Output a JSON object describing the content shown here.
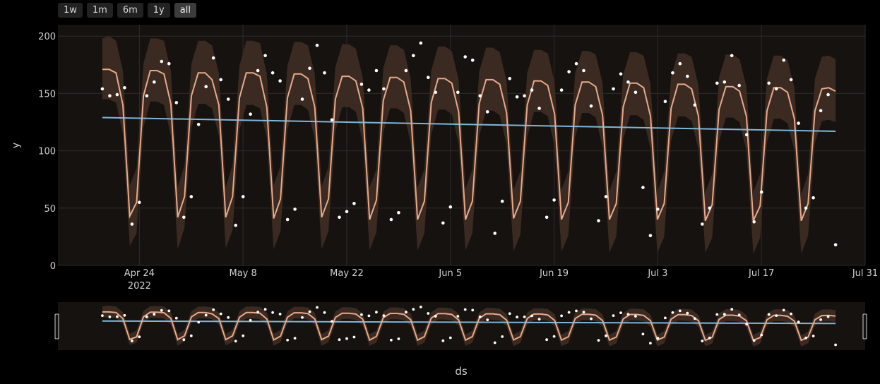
{
  "range_buttons": [
    {
      "label": "1w",
      "active": false
    },
    {
      "label": "1m",
      "active": false
    },
    {
      "label": "6m",
      "active": false
    },
    {
      "label": "1y",
      "active": false
    },
    {
      "label": "all",
      "active": true
    }
  ],
  "colors": {
    "background": "#000000",
    "plot_bg": "#16120f",
    "grid": "#2c2c2c",
    "band": "#3a2a22",
    "forecast": "#e8a98a",
    "trend": "#7eb6d9",
    "points": "#ffffff",
    "text": "#d0d0d0"
  },
  "chart_data": {
    "type": "line",
    "title": "",
    "xlabel": "ds",
    "ylabel": "y",
    "x_start": "2022-04-19",
    "x_end": "2022-07-27",
    "xlim": [
      "2022-04-13",
      "2022-07-31"
    ],
    "ylim": [
      0,
      210
    ],
    "yticks": [
      0,
      50,
      100,
      150,
      200
    ],
    "xticks": [
      {
        "date": "2022-04-24",
        "label": "Apr 24",
        "sublabel": "2022"
      },
      {
        "date": "2022-05-08",
        "label": "May 8"
      },
      {
        "date": "2022-05-22",
        "label": "May 22"
      },
      {
        "date": "2022-06-05",
        "label": "Jun 5"
      },
      {
        "date": "2022-06-19",
        "label": "Jun 19"
      },
      {
        "date": "2022-07-03",
        "label": "Jul 3"
      },
      {
        "date": "2022-07-17",
        "label": "Jul 17"
      },
      {
        "date": "2022-07-31",
        "label": "Jul 31"
      }
    ],
    "grid": true,
    "trend": {
      "start": 129,
      "end": 117
    },
    "series": [
      {
        "role": "yhat",
        "values": [
          171,
          171,
          168,
          140,
          43,
          55,
          148,
          170,
          170,
          167,
          141,
          42,
          60,
          148,
          168,
          168,
          162,
          140,
          42,
          60,
          146,
          168,
          168,
          165,
          138,
          41,
          58,
          146,
          167,
          167,
          163,
          138,
          42,
          58,
          145,
          165,
          165,
          161,
          137,
          40,
          57,
          144,
          164,
          164,
          160,
          135,
          40,
          56,
          142,
          163,
          163,
          159,
          134,
          40,
          56,
          141,
          162,
          162,
          158,
          133,
          41,
          56,
          140,
          161,
          161,
          157,
          132,
          40,
          55,
          140,
          160,
          160,
          156,
          131,
          40,
          54,
          138,
          159,
          159,
          155,
          130,
          40,
          54,
          137,
          158,
          158,
          154,
          130,
          39,
          53,
          136,
          156,
          156,
          152,
          130,
          39,
          52,
          135,
          155,
          155,
          151,
          128,
          39,
          54,
          135,
          154,
          155,
          152
        ]
      },
      {
        "role": "yhat_upper",
        "values": [
          198,
          200,
          196,
          170,
          70,
          85,
          176,
          198,
          198,
          196,
          170,
          68,
          88,
          176,
          196,
          196,
          192,
          168,
          68,
          88,
          174,
          196,
          196,
          194,
          167,
          70,
          87,
          174,
          195,
          195,
          192,
          167,
          69,
          86,
          173,
          193,
          193,
          189,
          164,
          68,
          84,
          172,
          192,
          192,
          188,
          163,
          68,
          84,
          170,
          191,
          191,
          187,
          162,
          67,
          84,
          169,
          190,
          190,
          186,
          161,
          66,
          82,
          168,
          188,
          188,
          185,
          160,
          66,
          82,
          168,
          187,
          187,
          184,
          159,
          65,
          82,
          166,
          186,
          186,
          183,
          158,
          64,
          82,
          165,
          185,
          185,
          182,
          157,
          64,
          80,
          164,
          184,
          184,
          180,
          156,
          64,
          80,
          163,
          183,
          183,
          179,
          155,
          62,
          80,
          163,
          182,
          183,
          180
        ]
      },
      {
        "role": "yhat_lower",
        "values": [
          145,
          145,
          142,
          115,
          17,
          28,
          120,
          143,
          143,
          140,
          113,
          14,
          33,
          120,
          141,
          141,
          137,
          113,
          15,
          31,
          118,
          140,
          140,
          137,
          111,
          14,
          30,
          118,
          140,
          140,
          136,
          110,
          14,
          30,
          117,
          138,
          138,
          134,
          108,
          13,
          29,
          116,
          137,
          137,
          133,
          107,
          13,
          28,
          114,
          136,
          136,
          132,
          106,
          13,
          28,
          113,
          135,
          135,
          131,
          105,
          12,
          27,
          112,
          134,
          134,
          130,
          104,
          12,
          26,
          112,
          133,
          133,
          129,
          103,
          11,
          25,
          110,
          131,
          131,
          127,
          102,
          11,
          25,
          109,
          130,
          130,
          126,
          101,
          11,
          24,
          108,
          129,
          129,
          125,
          100,
          10,
          24,
          107,
          128,
          128,
          124,
          100,
          10,
          26,
          107,
          126,
          127,
          125
        ]
      },
      {
        "role": "observed",
        "values": [
          154,
          148,
          149,
          155,
          36,
          55,
          148,
          160,
          178,
          176,
          142,
          42,
          60,
          123,
          156,
          181,
          162,
          145,
          35,
          60,
          132,
          170,
          183,
          168,
          161,
          40,
          49,
          145,
          172,
          192,
          168,
          127,
          42,
          47,
          54,
          158,
          153,
          170,
          154,
          40,
          46,
          170,
          183,
          194,
          164,
          151,
          37,
          51,
          151,
          182,
          179,
          148,
          134,
          28,
          56,
          163,
          147,
          148,
          153,
          137,
          42,
          57,
          153,
          169,
          176,
          170,
          139,
          39,
          60,
          154,
          167,
          160,
          151,
          68,
          26,
          49,
          143,
          168,
          176,
          165,
          140,
          36,
          50,
          159,
          160,
          183,
          157,
          114,
          38,
          64,
          159,
          154,
          179,
          162,
          124,
          50,
          59,
          135,
          149,
          18
        ]
      }
    ]
  }
}
